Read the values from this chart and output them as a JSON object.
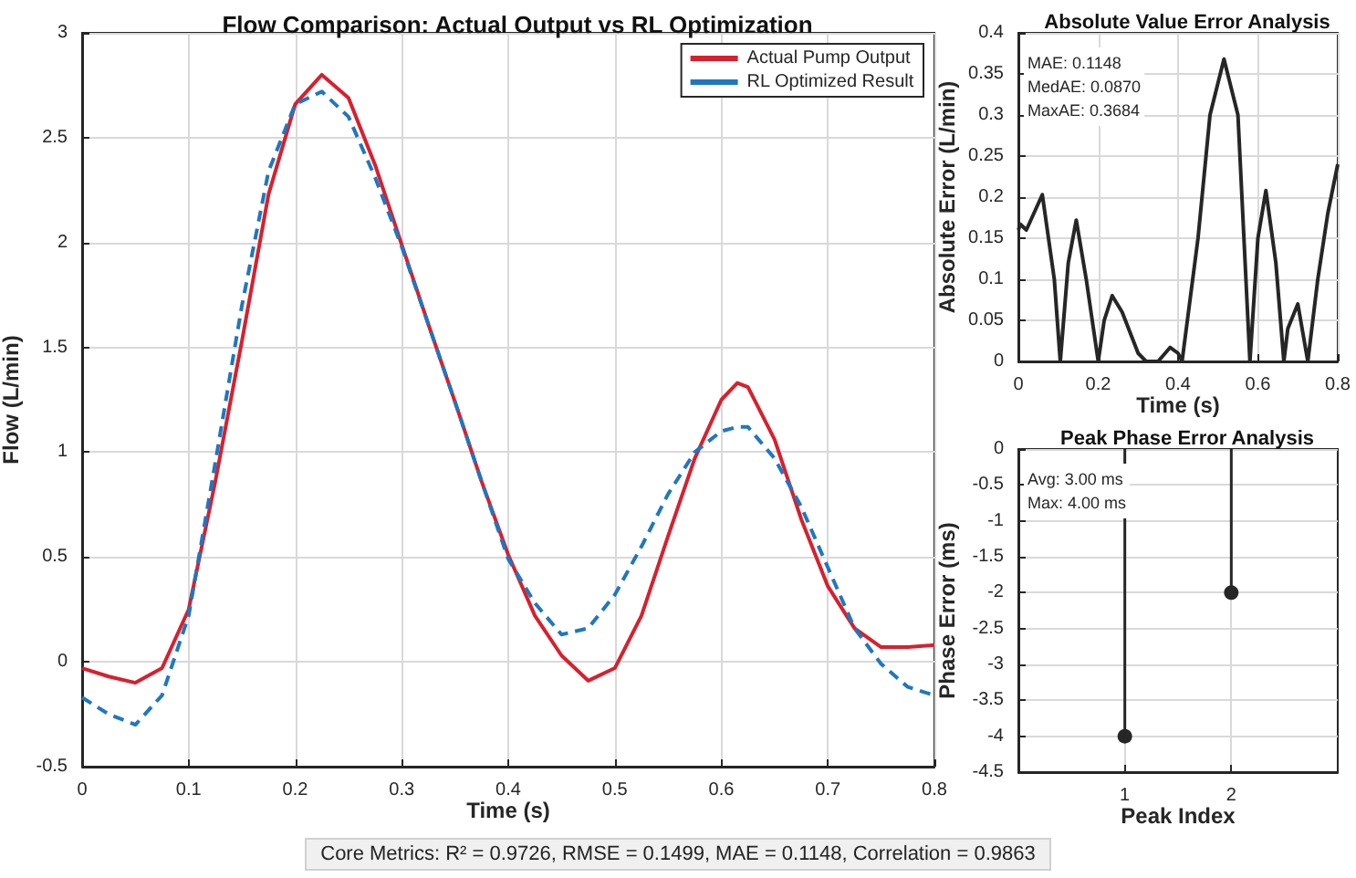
{
  "chart_data": [
    {
      "type": "line",
      "title": "Flow Comparison: Actual Output vs RL Optimization",
      "xlabel": "Time (s)",
      "ylabel": "Flow (L/min)",
      "x": [
        0,
        0.025,
        0.05,
        0.075,
        0.1,
        0.125,
        0.15,
        0.175,
        0.2,
        0.225,
        0.25,
        0.275,
        0.3,
        0.325,
        0.35,
        0.375,
        0.4,
        0.425,
        0.45,
        0.475,
        0.5,
        0.525,
        0.55,
        0.575,
        0.6,
        0.615,
        0.625,
        0.65,
        0.675,
        0.7,
        0.725,
        0.75,
        0.775,
        0.8
      ],
      "series": [
        {
          "name": "Actual Pump Output",
          "color": "#d7202e",
          "line_style": "solid",
          "values": [
            -0.03,
            -0.07,
            -0.1,
            -0.03,
            0.25,
            0.86,
            1.53,
            2.23,
            2.66,
            2.8,
            2.69,
            2.37,
            1.99,
            1.61,
            1.24,
            0.86,
            0.51,
            0.22,
            0.03,
            -0.09,
            -0.03,
            0.22,
            0.6,
            0.97,
            1.25,
            1.33,
            1.31,
            1.06,
            0.68,
            0.36,
            0.16,
            0.07,
            0.07,
            0.08
          ]
        },
        {
          "name": "RL Optimized Result",
          "color": "#1f77c0",
          "line_style": "dashed",
          "values": [
            -0.17,
            -0.25,
            -0.3,
            -0.16,
            0.22,
            0.95,
            1.7,
            2.34,
            2.66,
            2.72,
            2.6,
            2.31,
            1.98,
            1.61,
            1.24,
            0.86,
            0.49,
            0.28,
            0.13,
            0.16,
            0.32,
            0.55,
            0.8,
            1.0,
            1.1,
            1.12,
            1.12,
            0.97,
            0.74,
            0.45,
            0.16,
            -0.01,
            -0.12,
            -0.16
          ]
        }
      ],
      "xlim": [
        0,
        0.8
      ],
      "xticks": [
        0,
        0.1,
        0.2,
        0.3,
        0.4,
        0.5,
        0.6,
        0.7,
        0.8
      ],
      "ylim": [
        -0.5,
        3
      ],
      "yticks": [
        -0.5,
        0,
        0.5,
        1,
        1.5,
        2,
        2.5,
        3
      ],
      "grid": true,
      "legend": "top right",
      "annotations": [
        "Core Metrics: R² = 0.9726, RMSE = 0.1499, MAE = 0.1148, Correlation = 0.9863"
      ]
    },
    {
      "type": "line",
      "title": "Absolute Value Error Analysis",
      "xlabel": "Time (s)",
      "ylabel": "Absolute Error (L/min)",
      "series": [
        {
          "color": "#262626",
          "line_style": "solid",
          "x": [
            0,
            0.005,
            0.02,
            0.06,
            0.09,
            0.105,
            0.125,
            0.145,
            0.17,
            0.2,
            0.215,
            0.235,
            0.26,
            0.3,
            0.32,
            0.35,
            0.38,
            0.4,
            0.41,
            0.45,
            0.48,
            0.515,
            0.55,
            0.58,
            0.6,
            0.62,
            0.645,
            0.665,
            0.675,
            0.7,
            0.725,
            0.75,
            0.775,
            0.8
          ],
          "values": [
            0.16,
            0.167,
            0.16,
            0.203,
            0.1,
            0,
            0.12,
            0.172,
            0.1,
            0,
            0.05,
            0.08,
            0.06,
            0.01,
            0,
            0,
            0.017,
            0.01,
            0,
            0.15,
            0.3,
            0.368,
            0.3,
            0,
            0.15,
            0.208,
            0.12,
            0,
            0.04,
            0.07,
            0,
            0.1,
            0.18,
            0.24
          ]
        }
      ],
      "xlim": [
        0,
        0.8
      ],
      "xticks": [
        0,
        0.2,
        0.4,
        0.6,
        0.8
      ],
      "ylim": [
        0,
        0.4
      ],
      "yticks": [
        0,
        0.05,
        0.1,
        0.15,
        0.2,
        0.25,
        0.3,
        0.35,
        0.4
      ],
      "grid": true,
      "annotations": [
        "MAE: 0.1148",
        "MedAE: 0.0870",
        "MaxAE: 0.3684"
      ]
    },
    {
      "type": "lollipop",
      "title": "Peak Phase Error Analysis",
      "xlabel": "Peak Index",
      "ylabel": "Phase Error (ms)",
      "x": [
        1,
        2
      ],
      "values": [
        -4,
        -2
      ],
      "color": "#262626",
      "marker": "circle",
      "xlim": [
        0,
        3
      ],
      "xticks": [
        1,
        2
      ],
      "ylim": [
        -4.5,
        0
      ],
      "yticks": [
        -4.5,
        -4,
        -3.5,
        -3,
        -2.5,
        -2,
        -1.5,
        -1,
        -0.5,
        0
      ],
      "grid": true,
      "annotations": [
        "Avg: 3.00 ms",
        "Max: 4.00 ms"
      ]
    }
  ]
}
